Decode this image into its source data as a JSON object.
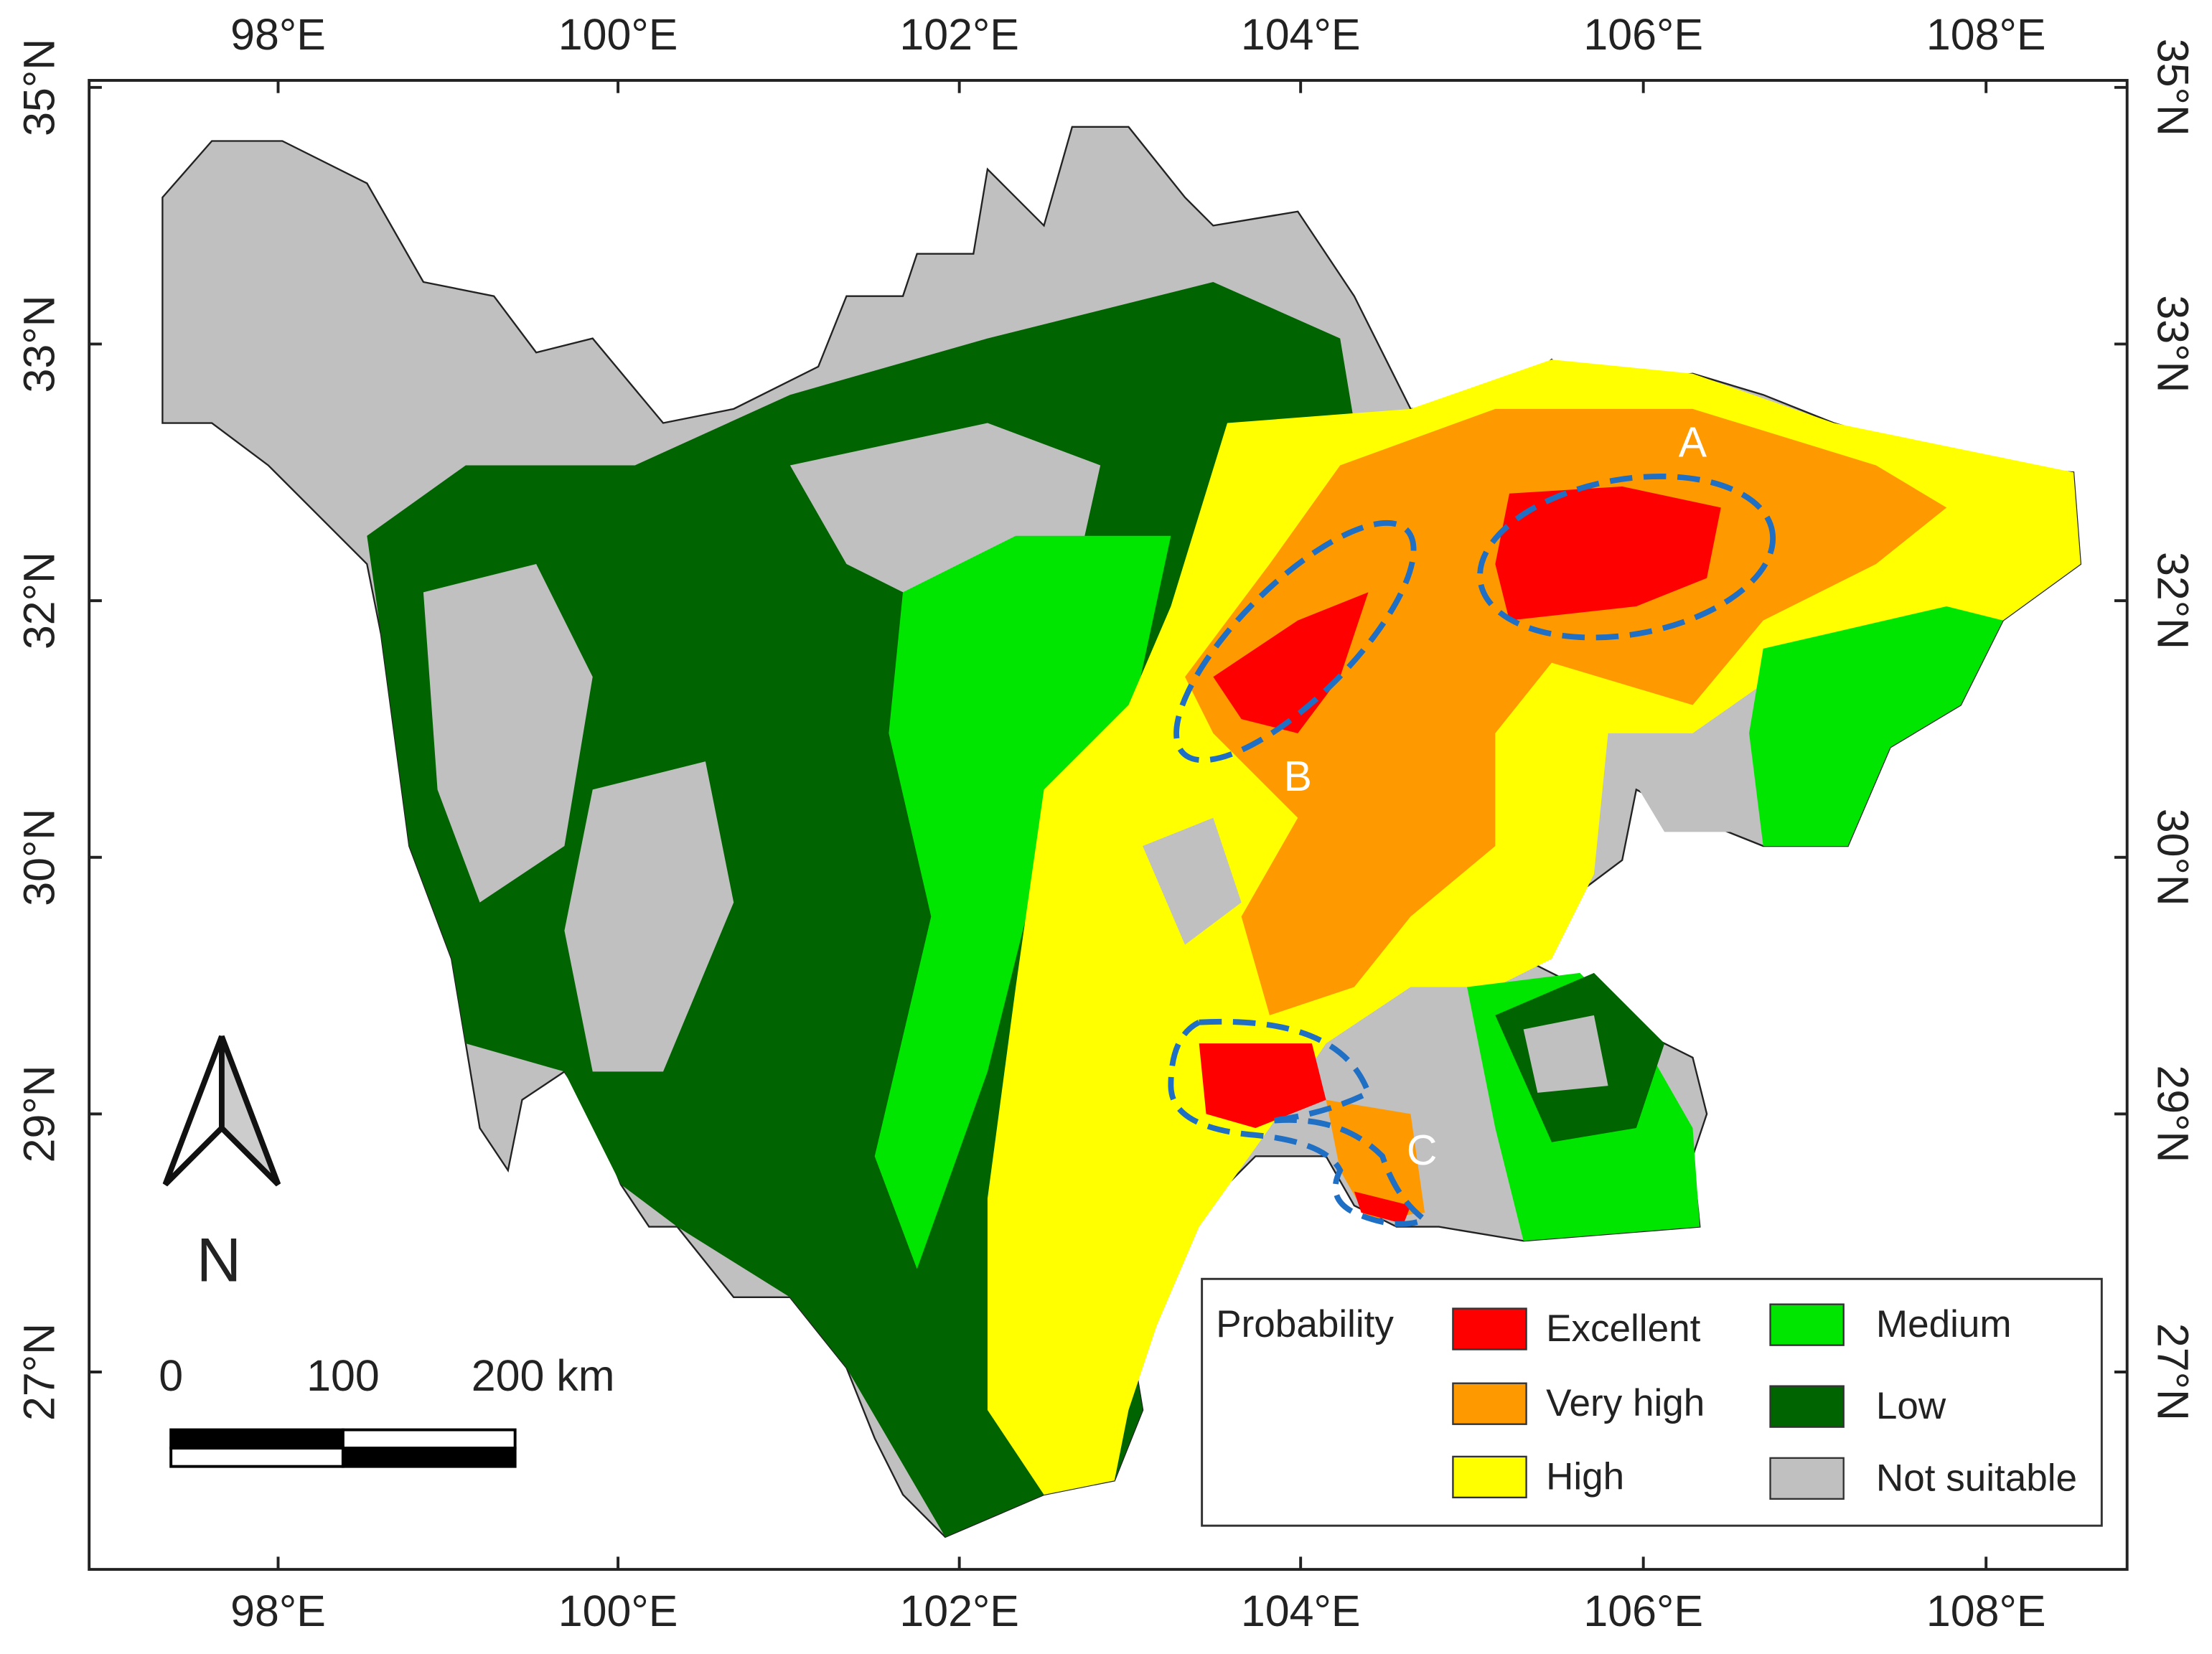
{
  "x_ticks": [
    "98°E",
    "100°E",
    "102°E",
    "104°E",
    "106°E",
    "108°E"
  ],
  "y_ticks": [
    "35°N",
    "33°N",
    "32°N",
    "30°N",
    "29°N",
    "27°N"
  ],
  "legend": {
    "title": "Probability",
    "items": [
      "Excellent",
      "Very high",
      "High",
      "Medium",
      "Low",
      "Not suitable"
    ]
  },
  "scale_bar": {
    "labels": [
      "0",
      "100",
      "200 km"
    ]
  },
  "north_arrow": "N",
  "annotations": [
    "A",
    "B",
    "C"
  ]
}
